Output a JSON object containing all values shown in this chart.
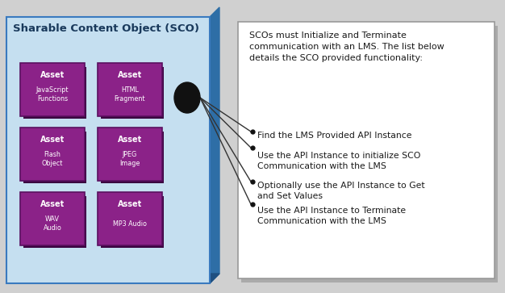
{
  "title": "Sharable Content Object (SCO)",
  "sco_bg_color": "#c5dff0",
  "sco_border_color": "#3a7abf",
  "sco_3d_color": "#2e6ea6",
  "sco_3d_dark": "#1e4f80",
  "asset_bg_color": "#8b2288",
  "asset_border_color": "#5a1060",
  "asset_shadow_color": "#3a0040",
  "asset_label_color": "#ffffff",
  "assets": [
    {
      "label": "Asset",
      "sublabel": "JavaScript\nFunctions",
      "col": 0,
      "row": 0
    },
    {
      "label": "Asset",
      "sublabel": "HTML\nFragment",
      "col": 1,
      "row": 0
    },
    {
      "label": "Asset",
      "sublabel": "Flash\nObject",
      "col": 0,
      "row": 1
    },
    {
      "label": "Asset",
      "sublabel": "JPEG\nImage",
      "col": 1,
      "row": 1
    },
    {
      "label": "Asset",
      "sublabel": "WAV\nAudio",
      "col": 0,
      "row": 2
    },
    {
      "label": "Asset",
      "sublabel": "MP3 Audio",
      "col": 1,
      "row": 2
    }
  ],
  "bullet_points": [
    {
      "text": "Find the LMS Provided API Instance"
    },
    {
      "text": "Use the API Instance to initialize SCO\nCommunication with the LMS"
    },
    {
      "text": "Optionally use the API Instance to Get\nand Set Values"
    },
    {
      "text": "Use the API Instance to Terminate\nCommunication with the LMS"
    }
  ],
  "intro_text": "SCOs must Initialize and Terminate\ncommunication with an LMS. The list below\ndetails the SCO provided functionality:",
  "right_panel_bg": "#ffffff",
  "right_panel_border": "#999999",
  "right_panel_shadow": "#aaaaaa",
  "connector_color": "#333333",
  "title_color": "#1a3a5c",
  "text_color": "#1a1a1a",
  "fig_bg": "#d0d0d0",
  "figsize": [
    6.26,
    3.63
  ],
  "dpi": 100
}
